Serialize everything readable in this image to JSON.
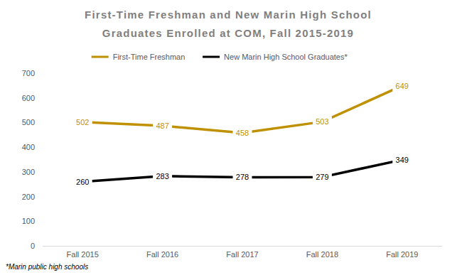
{
  "chart_data": {
    "type": "line",
    "title": "First-Time Freshman and New Marin High School Graduates Enrolled at COM, Fall 2015-2019",
    "note": "*Marin public high schools",
    "categories": [
      "Fall 2015",
      "Fall 2016",
      "Fall 2017",
      "Fall 2018",
      "Fall 2019"
    ],
    "series": [
      {
        "name": "First-Time Freshman",
        "color": "#bf9000",
        "values": [
          502,
          487,
          458,
          503,
          649
        ]
      },
      {
        "name": "New Marin High School Graduates*",
        "color": "#000000",
        "values": [
          260,
          283,
          278,
          279,
          349
        ]
      }
    ],
    "ylim": [
      0,
      700
    ],
    "yticks": [
      0,
      100,
      200,
      300,
      400,
      500,
      600,
      700
    ],
    "grid": false,
    "legend": "top",
    "data_labels": true,
    "marker": "none",
    "line_style": "solid"
  }
}
